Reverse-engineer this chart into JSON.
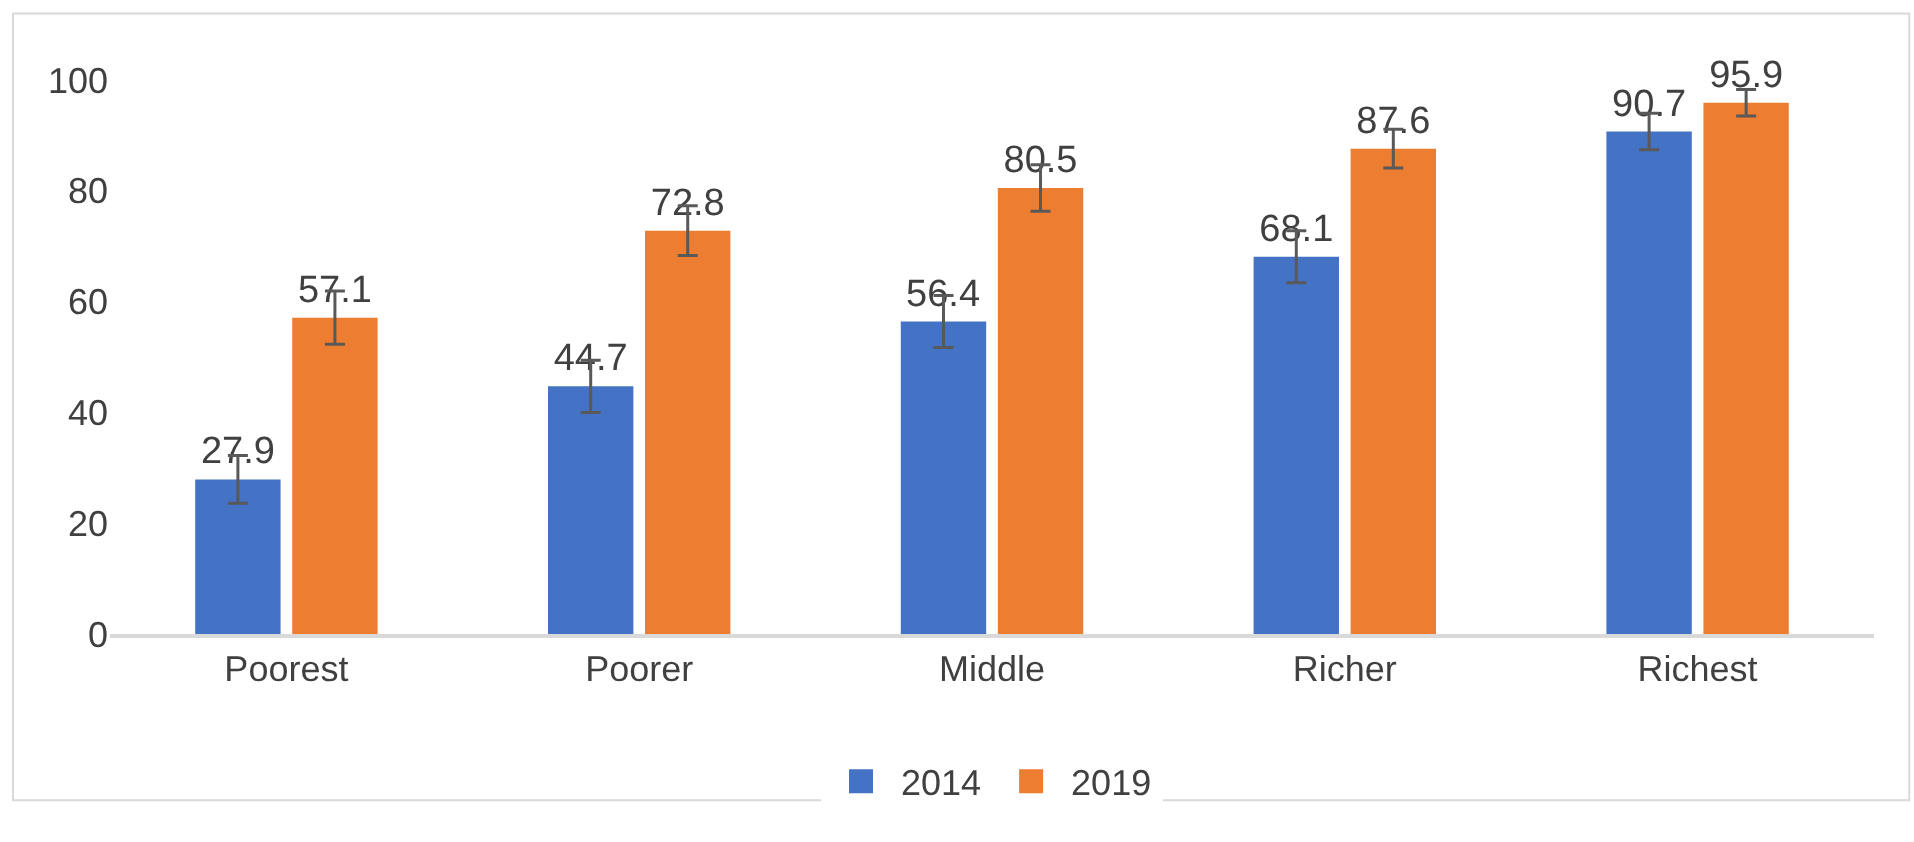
{
  "chart_data": {
    "type": "bar",
    "categories": [
      "Poorest",
      "Poorer",
      "Middle",
      "Richer",
      "Richest"
    ],
    "series": [
      {
        "name": "2014",
        "color": "#4472c4",
        "values": [
          27.9,
          44.7,
          56.4,
          68.1,
          90.7
        ],
        "errors": [
          4.3,
          4.7,
          4.7,
          4.7,
          3.3
        ]
      },
      {
        "name": "2019",
        "color": "#ed7d31",
        "values": [
          57.1,
          72.8,
          80.5,
          87.6,
          95.9
        ],
        "errors": [
          4.8,
          4.5,
          4.2,
          3.5,
          2.4
        ]
      }
    ],
    "ylim": [
      0,
      100
    ],
    "yticks": [
      0,
      20,
      40,
      60,
      80,
      100
    ],
    "data_labels": true,
    "legend": "bottom"
  }
}
